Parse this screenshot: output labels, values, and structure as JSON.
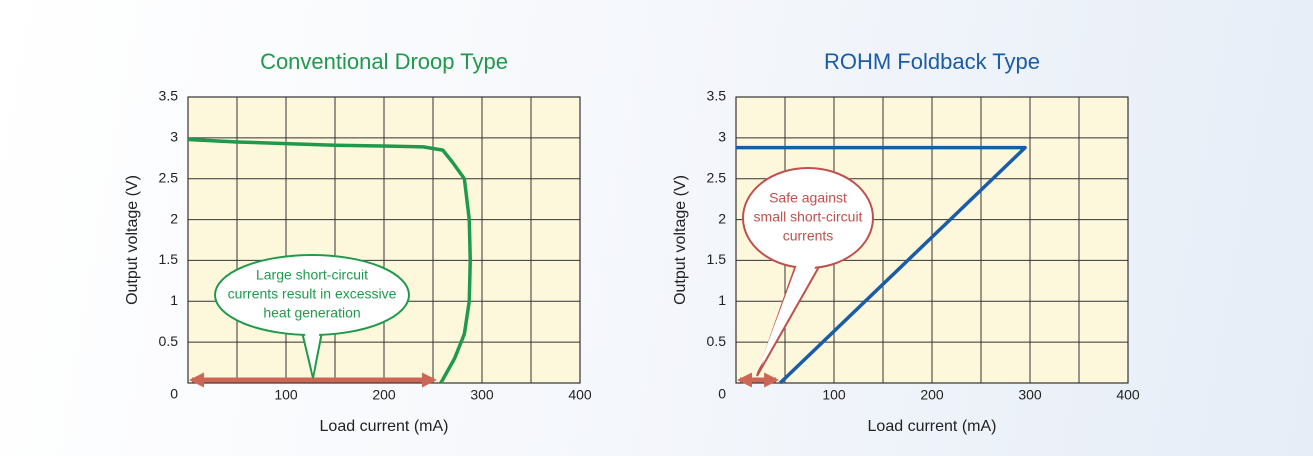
{
  "chart_data": [
    {
      "type": "line",
      "title": "Conventional Droop Type",
      "x": [
        0,
        50,
        100,
        150,
        200,
        240,
        260,
        270,
        282,
        287,
        288,
        287,
        282,
        272,
        258
      ],
      "series": [
        {
          "color": "#1f9a4c",
          "values": [
            2.98,
            2.95,
            2.93,
            2.91,
            2.9,
            2.89,
            2.85,
            2.7,
            2.5,
            2.0,
            1.5,
            1.0,
            0.6,
            0.3,
            0
          ]
        }
      ],
      "xlabel": "Load current (mA)",
      "ylabel": "Output voltage (V)",
      "xlim": [
        0,
        400
      ],
      "ylim": [
        0,
        3.5
      ],
      "xticks": [
        100,
        200,
        300,
        400
      ],
      "x_minor_ticks": [
        50,
        150,
        250,
        350
      ],
      "yticks": [
        0,
        0.5,
        1,
        1.5,
        2,
        2.5,
        3,
        3.5
      ],
      "grid": true,
      "arrow": {
        "color": "#cc6655",
        "x": [
          0,
          255
        ]
      },
      "annotation": {
        "color": "#1f9a4c",
        "lines": [
          "Large short-circuit",
          "currents result in excessive",
          "heat generation"
        ]
      }
    },
    {
      "type": "line",
      "title": "ROHM Foldback Type",
      "x": [
        0,
        295,
        45
      ],
      "series": [
        {
          "color": "#1a5ca8",
          "values": [
            2.88,
            2.88,
            0
          ]
        }
      ],
      "xlabel": "Load current (mA)",
      "ylabel": "Output voltage (V)",
      "xlim": [
        0,
        400
      ],
      "ylim": [
        0,
        3.5
      ],
      "xticks": [
        100,
        200,
        300,
        400
      ],
      "x_minor_ticks": [
        50,
        150,
        250,
        350
      ],
      "yticks": [
        0,
        0.5,
        1,
        1.5,
        2,
        2.5,
        3,
        3.5
      ],
      "grid": true,
      "arrow": {
        "color": "#cc6655",
        "x": [
          0,
          45
        ]
      },
      "annotation": {
        "color": "#c0504d",
        "lines": [
          "Safe against",
          "small short-circuit",
          "currents"
        ]
      }
    }
  ]
}
